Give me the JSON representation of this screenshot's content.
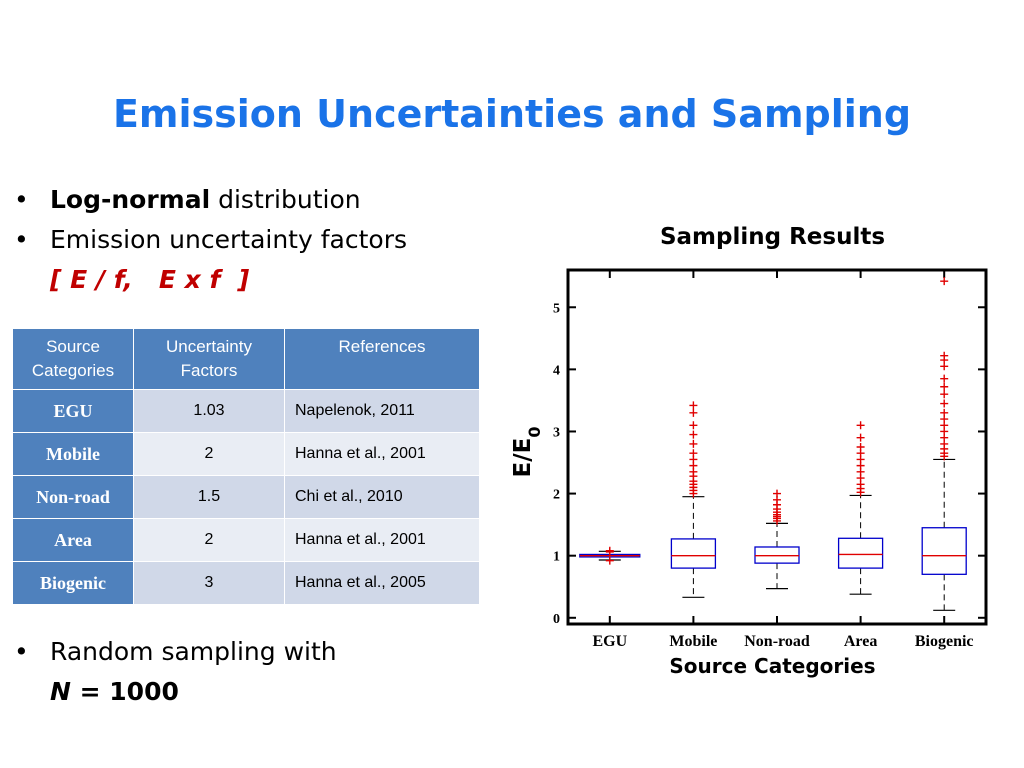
{
  "title": "Emission Uncertainties and Sampling",
  "bullets": {
    "b1_bold": "Log-normal",
    "b1_rest": " distribution",
    "b2": "Emission uncertainty factors",
    "b2_formula": "[ E / f,   E x f  ]",
    "b3": "Random sampling with",
    "b3_n": "N",
    "b3_eq": " = 1000",
    "marker": "•"
  },
  "table": {
    "headers": [
      "Source Categories",
      "Uncertainty Factors",
      "References"
    ],
    "rows": [
      {
        "category": "EGU",
        "factor": "1.03",
        "reference": "Napelenok, 2011"
      },
      {
        "category": "Mobile",
        "factor": "2",
        "reference": "Hanna et al., 2001"
      },
      {
        "category": "Non-road",
        "factor": "1.5",
        "reference": "Chi et al., 2010"
      },
      {
        "category": "Area",
        "factor": "2",
        "reference": "Hanna et al., 2001"
      },
      {
        "category": "Biogenic",
        "factor": "3",
        "reference": "Hanna et al., 2005"
      }
    ]
  },
  "colors": {
    "title": "#1a73e8",
    "header": "#4f81bd",
    "box": "#0000cc",
    "median": "#e00000",
    "outlier": "#e00000"
  },
  "chart_data": {
    "type": "box",
    "title": "Sampling Results",
    "xlabel": "Source Categories",
    "ylabel": "E/E0",
    "ylim": [
      -0.1,
      5.6
    ],
    "yticks": [
      0,
      1,
      2,
      3,
      4,
      5
    ],
    "categories": [
      "EGU",
      "Mobile",
      "Non-road",
      "Area",
      "Biogenic"
    ],
    "boxes": [
      {
        "name": "EGU",
        "whislo": 0.93,
        "q1": 0.98,
        "med": 1.0,
        "q3": 1.02,
        "whishi": 1.07,
        "outliers": [
          1.08,
          1.06,
          0.92
        ]
      },
      {
        "name": "Mobile",
        "whislo": 0.33,
        "q1": 0.8,
        "med": 1.0,
        "q3": 1.27,
        "whishi": 1.95,
        "outliers": [
          2.0,
          2.05,
          2.1,
          2.15,
          2.2,
          2.28,
          2.35,
          2.45,
          2.55,
          2.65,
          2.8,
          2.95,
          3.1,
          3.3,
          3.42
        ]
      },
      {
        "name": "Non-road",
        "whislo": 0.47,
        "q1": 0.88,
        "med": 1.0,
        "q3": 1.14,
        "whishi": 1.52,
        "outliers": [
          1.56,
          1.6,
          1.63,
          1.66,
          1.7,
          1.75,
          1.82,
          1.9,
          2.0
        ]
      },
      {
        "name": "Area",
        "whislo": 0.38,
        "q1": 0.8,
        "med": 1.02,
        "q3": 1.28,
        "whishi": 1.97,
        "outliers": [
          2.02,
          2.08,
          2.15,
          2.25,
          2.35,
          2.45,
          2.55,
          2.65,
          2.75,
          2.9,
          3.1
        ]
      },
      {
        "name": "Biogenic",
        "whislo": 0.12,
        "q1": 0.7,
        "med": 1.0,
        "q3": 1.45,
        "whishi": 2.55,
        "outliers": [
          2.6,
          2.65,
          2.72,
          2.8,
          2.9,
          3.0,
          3.1,
          3.2,
          3.3,
          3.45,
          3.6,
          3.72,
          3.85,
          4.05,
          4.15,
          4.22,
          5.42
        ]
      }
    ]
  }
}
